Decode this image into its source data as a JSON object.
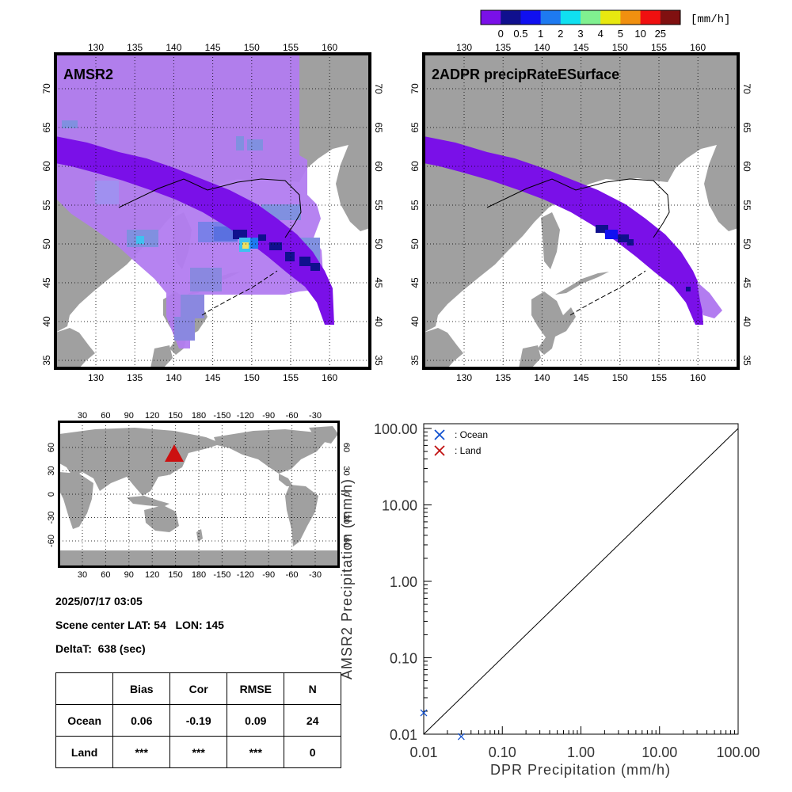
{
  "colorbar": {
    "unit": "[mm/h]",
    "colors": [
      "#7a10e8",
      "#10108e",
      "#1010f0",
      "#1e7af0",
      "#10e0f0",
      "#80f090",
      "#e8e810",
      "#f09010",
      "#f01010",
      "#801010"
    ],
    "labels": [
      "0",
      "0.5",
      "1",
      "2",
      "3",
      "4",
      "5",
      "10",
      "25"
    ]
  },
  "maps": {
    "left_title": "AMSR2",
    "right_title": "2ADPR precipRateESurface",
    "lon_ticks": [
      "130",
      "135",
      "140",
      "145",
      "150",
      "155",
      "160"
    ],
    "lat_ticks": [
      "35",
      "40",
      "45",
      "50",
      "55",
      "60",
      "65",
      "70"
    ],
    "land_color": "#a0a0a0",
    "amsr2_light_color": "#b27cf0",
    "swath_color": "#7a10e8"
  },
  "world_map": {
    "top_ticks": [
      "30",
      "60",
      "90",
      "120",
      "150",
      "180",
      "-150",
      "-120",
      "-90",
      "-60",
      "-30"
    ],
    "bottom_ticks": [
      "30",
      "60",
      "90",
      "120",
      "150",
      "180",
      "-150",
      "-120",
      "-90",
      "-60",
      "-30"
    ],
    "left_ticks": [
      "60",
      "30",
      "0",
      "-30",
      "-60"
    ],
    "right_ticks": [
      "60",
      "30",
      "0",
      "-30",
      "-60"
    ],
    "marker_color": "#cc1010"
  },
  "info": {
    "datetime": "2025/07/17 03:05",
    "scene_center": "Scene center LAT: 54   LON: 145",
    "deltat": "DeltaT:  638 (sec)"
  },
  "stats_table": {
    "headers": [
      "",
      "Bias",
      "Cor",
      "RMSE",
      "N"
    ],
    "rows": [
      [
        "Ocean",
        "0.06",
        "-0.19",
        "0.09",
        "24"
      ],
      [
        "Land",
        "***",
        "***",
        "***",
        "0"
      ]
    ]
  },
  "chart_data": {
    "type": "scatter",
    "xlabel": "DPR Precipitation (mm/h)",
    "ylabel": "AMSR2 Precipitation (mm/h)",
    "xscale": "log",
    "yscale": "log",
    "xlim": [
      0.01,
      100
    ],
    "ylim": [
      0.01,
      100
    ],
    "x_tick_labels": [
      "0.01",
      "0.10",
      "1.00",
      "10.00",
      "100.00"
    ],
    "y_tick_labels": [
      "0.01",
      "0.10",
      "1.00",
      "10.00",
      "100.00"
    ],
    "reference_line": "y = x",
    "legend_position": "top-left",
    "series": [
      {
        "name": ": Ocean",
        "color": "#1050d0",
        "points": [
          [
            0.01,
            0.019
          ],
          [
            0.03,
            0.0093
          ]
        ]
      },
      {
        "name": ": Land",
        "color": "#c01010",
        "points": []
      }
    ]
  }
}
